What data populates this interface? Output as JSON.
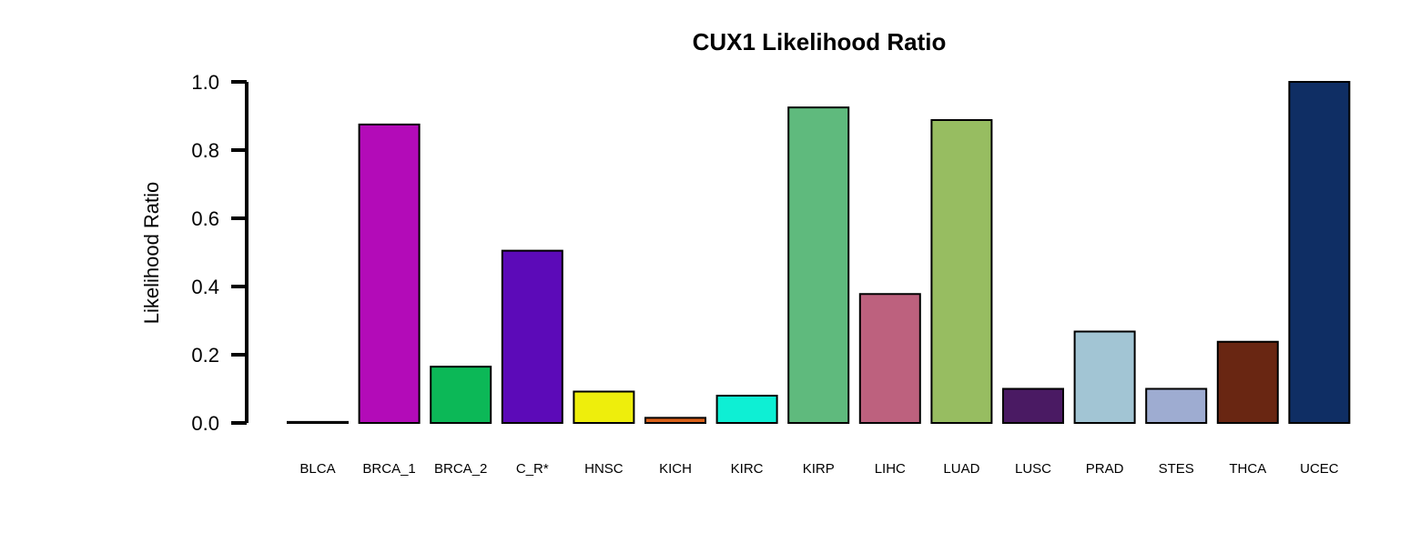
{
  "chart_data": {
    "type": "bar",
    "title": "CUX1 Likelihood Ratio",
    "xlabel": "",
    "ylabel": "Likelihood Ratio",
    "ylim": [
      0,
      1
    ],
    "yticks": [
      "0.0",
      "0.2",
      "0.4",
      "0.6",
      "0.8",
      "1.0"
    ],
    "grid": false,
    "categories": [
      "BLCA",
      "BRCA_1",
      "BRCA_2",
      "C_R*",
      "HNSC",
      "KICH",
      "KIRC",
      "KIRP",
      "LIHC",
      "LUAD",
      "LUSC",
      "PRAD",
      "STES",
      "THCA",
      "UCEC"
    ],
    "values": [
      0.003,
      0.875,
      0.165,
      0.505,
      0.092,
      0.015,
      0.08,
      0.925,
      0.378,
      0.888,
      0.1,
      0.268,
      0.1,
      0.238,
      1.0
    ],
    "colors": [
      "#000000",
      "#b30bb8",
      "#0cb857",
      "#5c0ab8",
      "#eeee0c",
      "#d9601a",
      "#0eefd4",
      "#5fba7d",
      "#bd617e",
      "#97bd61",
      "#4a1a63",
      "#a2c5d4",
      "#9eacd1",
      "#692612",
      "#0f2e64"
    ]
  }
}
